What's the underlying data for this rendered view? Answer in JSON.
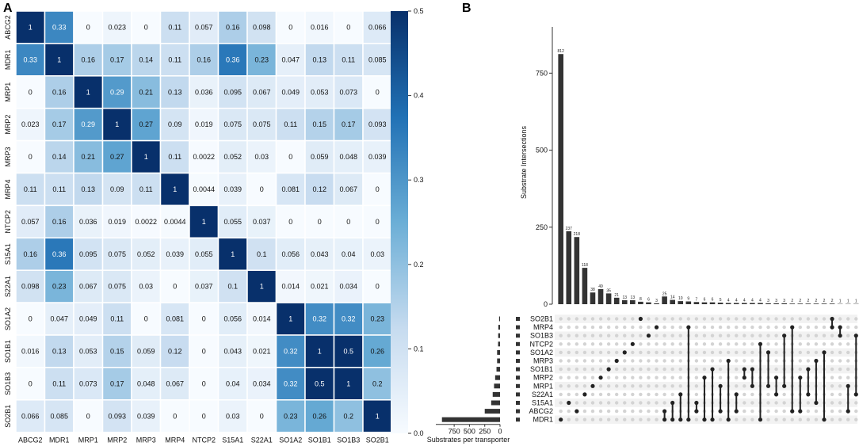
{
  "chart_data": [
    {
      "panel": "A",
      "type": "heatmap",
      "row_labels": [
        "ABCG2",
        "MDR1",
        "MRP1",
        "MRP2",
        "MRP3",
        "MRP4",
        "NTCP2",
        "S15A1",
        "S22A1",
        "SO1A2",
        "SO1B1",
        "SO1B3",
        "SO2B1"
      ],
      "col_labels": [
        "ABCG2",
        "MDR1",
        "MRP1",
        "MRP2",
        "MRP3",
        "MRP4",
        "NTCP2",
        "S15A1",
        "S22A1",
        "SO1A2",
        "SO1B1",
        "SO1B3",
        "SO2B1"
      ],
      "values": [
        [
          1,
          0.33,
          0,
          0.023,
          0,
          0.11,
          0.057,
          0.16,
          0.098,
          0,
          0.016,
          0,
          0.066
        ],
        [
          0.33,
          1,
          0.16,
          0.17,
          0.14,
          0.11,
          0.16,
          0.36,
          0.23,
          0.047,
          0.13,
          0.11,
          0.085
        ],
        [
          0,
          0.16,
          1,
          0.29,
          0.21,
          0.13,
          0.036,
          0.095,
          0.067,
          0.049,
          0.053,
          0.073,
          0
        ],
        [
          0.023,
          0.17,
          0.29,
          1,
          0.27,
          0.09,
          0.019,
          0.075,
          0.075,
          0.11,
          0.15,
          0.17,
          0.093
        ],
        [
          0,
          0.14,
          0.21,
          0.27,
          1,
          0.11,
          0.0022,
          0.052,
          0.03,
          0,
          0.059,
          0.048,
          0.039
        ],
        [
          0.11,
          0.11,
          0.13,
          0.09,
          0.11,
          1,
          0.0044,
          0.039,
          0,
          0.081,
          0.12,
          0.067,
          0
        ],
        [
          0.057,
          0.16,
          0.036,
          0.019,
          0.0022,
          0.0044,
          1,
          0.055,
          0.037,
          0,
          0,
          0,
          0
        ],
        [
          0.16,
          0.36,
          0.095,
          0.075,
          0.052,
          0.039,
          0.055,
          1,
          0.1,
          0.056,
          0.043,
          0.04,
          0.03
        ],
        [
          0.098,
          0.23,
          0.067,
          0.075,
          0.03,
          0,
          0.037,
          0.1,
          1,
          0.014,
          0.021,
          0.034,
          0
        ],
        [
          0,
          0.047,
          0.049,
          0.11,
          0,
          0.081,
          0,
          0.056,
          0.014,
          1,
          0.32,
          0.32,
          0.23
        ],
        [
          0.016,
          0.13,
          0.053,
          0.15,
          0.059,
          0.12,
          0,
          0.043,
          0.021,
          0.32,
          1,
          0.5,
          0.26
        ],
        [
          0,
          0.11,
          0.073,
          0.17,
          0.048,
          0.067,
          0,
          0.04,
          0.034,
          0.32,
          0.5,
          1,
          0.2
        ],
        [
          0.066,
          0.085,
          0,
          0.093,
          0.039,
          0,
          0,
          0.03,
          0,
          0.23,
          0.26,
          0.2,
          1
        ]
      ],
      "colorbar": {
        "range": [
          0.0,
          0.5
        ],
        "ticks": [
          "0.0",
          "0.1",
          "0.2",
          "0.3",
          "0.4",
          "0.5"
        ],
        "low_color": "#f7fbff",
        "high_color": "#08306b"
      }
    },
    {
      "panel": "B",
      "type": "upset",
      "ylabel": "Substrate Intersections",
      "yticks": [
        0,
        250,
        500,
        750
      ],
      "ylim": [
        0,
        900
      ],
      "intersection_sizes": [
        812,
        237,
        218,
        118,
        38,
        49,
        35,
        21,
        13,
        13,
        8,
        6,
        3,
        25,
        14,
        10,
        9,
        7,
        6,
        6,
        5,
        4,
        4,
        4,
        4,
        4,
        3,
        3,
        3,
        2,
        2,
        2,
        2,
        2,
        2,
        1,
        1,
        1
      ],
      "sets": [
        "SO2B1",
        "MRP4",
        "SO1B3",
        "NTCP2",
        "SO1A2",
        "MRP3",
        "SO1B1",
        "MRP2",
        "MRP1",
        "S22A1",
        "S15A1",
        "ABCG2",
        "MDR1"
      ],
      "set_sizes": [
        15,
        28,
        30,
        32,
        48,
        48,
        58,
        80,
        98,
        120,
        145,
        250,
        950
      ],
      "set_xlabel": "Substrates per transporter",
      "set_xticks": [
        750,
        500,
        250,
        0
      ],
      "set_xmax": 1050,
      "combos": [
        [
          "MDR1"
        ],
        [
          "S15A1"
        ],
        [
          "ABCG2"
        ],
        [
          "S22A1"
        ],
        [
          "MRP1"
        ],
        [
          "MRP2"
        ],
        [
          "SO1B1"
        ],
        [
          "MRP3"
        ],
        [
          "SO1A2"
        ],
        [
          "NTCP2"
        ],
        [
          "SO2B1"
        ],
        [
          "SO1B3"
        ],
        [
          "MRP4"
        ],
        [
          "ABCG2",
          "MDR1"
        ],
        [
          "MDR1",
          "S15A1"
        ],
        [
          "S22A1",
          "MDR1"
        ],
        [
          "MRP4",
          "MDR1"
        ],
        [
          "S15A1",
          "ABCG2"
        ],
        [
          "MRP2",
          "MDR1"
        ],
        [
          "SO1B1",
          "MDR1"
        ],
        [
          "MRP1",
          "ABCG2"
        ],
        [
          "MRP3",
          "MDR1"
        ],
        [
          "S22A1",
          "ABCG2"
        ],
        [
          "SO1B1",
          "MRP2"
        ],
        [
          "SO1B1",
          "MRP1"
        ],
        [
          "NTCP2",
          "MDR1"
        ],
        [
          "SO1A2",
          "MRP1"
        ],
        [
          "MRP2",
          "S22A1"
        ],
        [
          "SO1B3",
          "MRP1"
        ],
        [
          "MRP4",
          "ABCG2"
        ],
        [
          "MRP2",
          "ABCG2"
        ],
        [
          "SO1B1",
          "S22A1"
        ],
        [
          "MRP3",
          "S15A1"
        ],
        [
          "SO1A2",
          "MDR1"
        ],
        [
          "SO2B1",
          "MRP4"
        ],
        [
          "MRP4",
          "SO1B3"
        ],
        [
          "MRP1",
          "ABCG2"
        ],
        [
          "SO1B3",
          "S22A1"
        ]
      ]
    }
  ]
}
